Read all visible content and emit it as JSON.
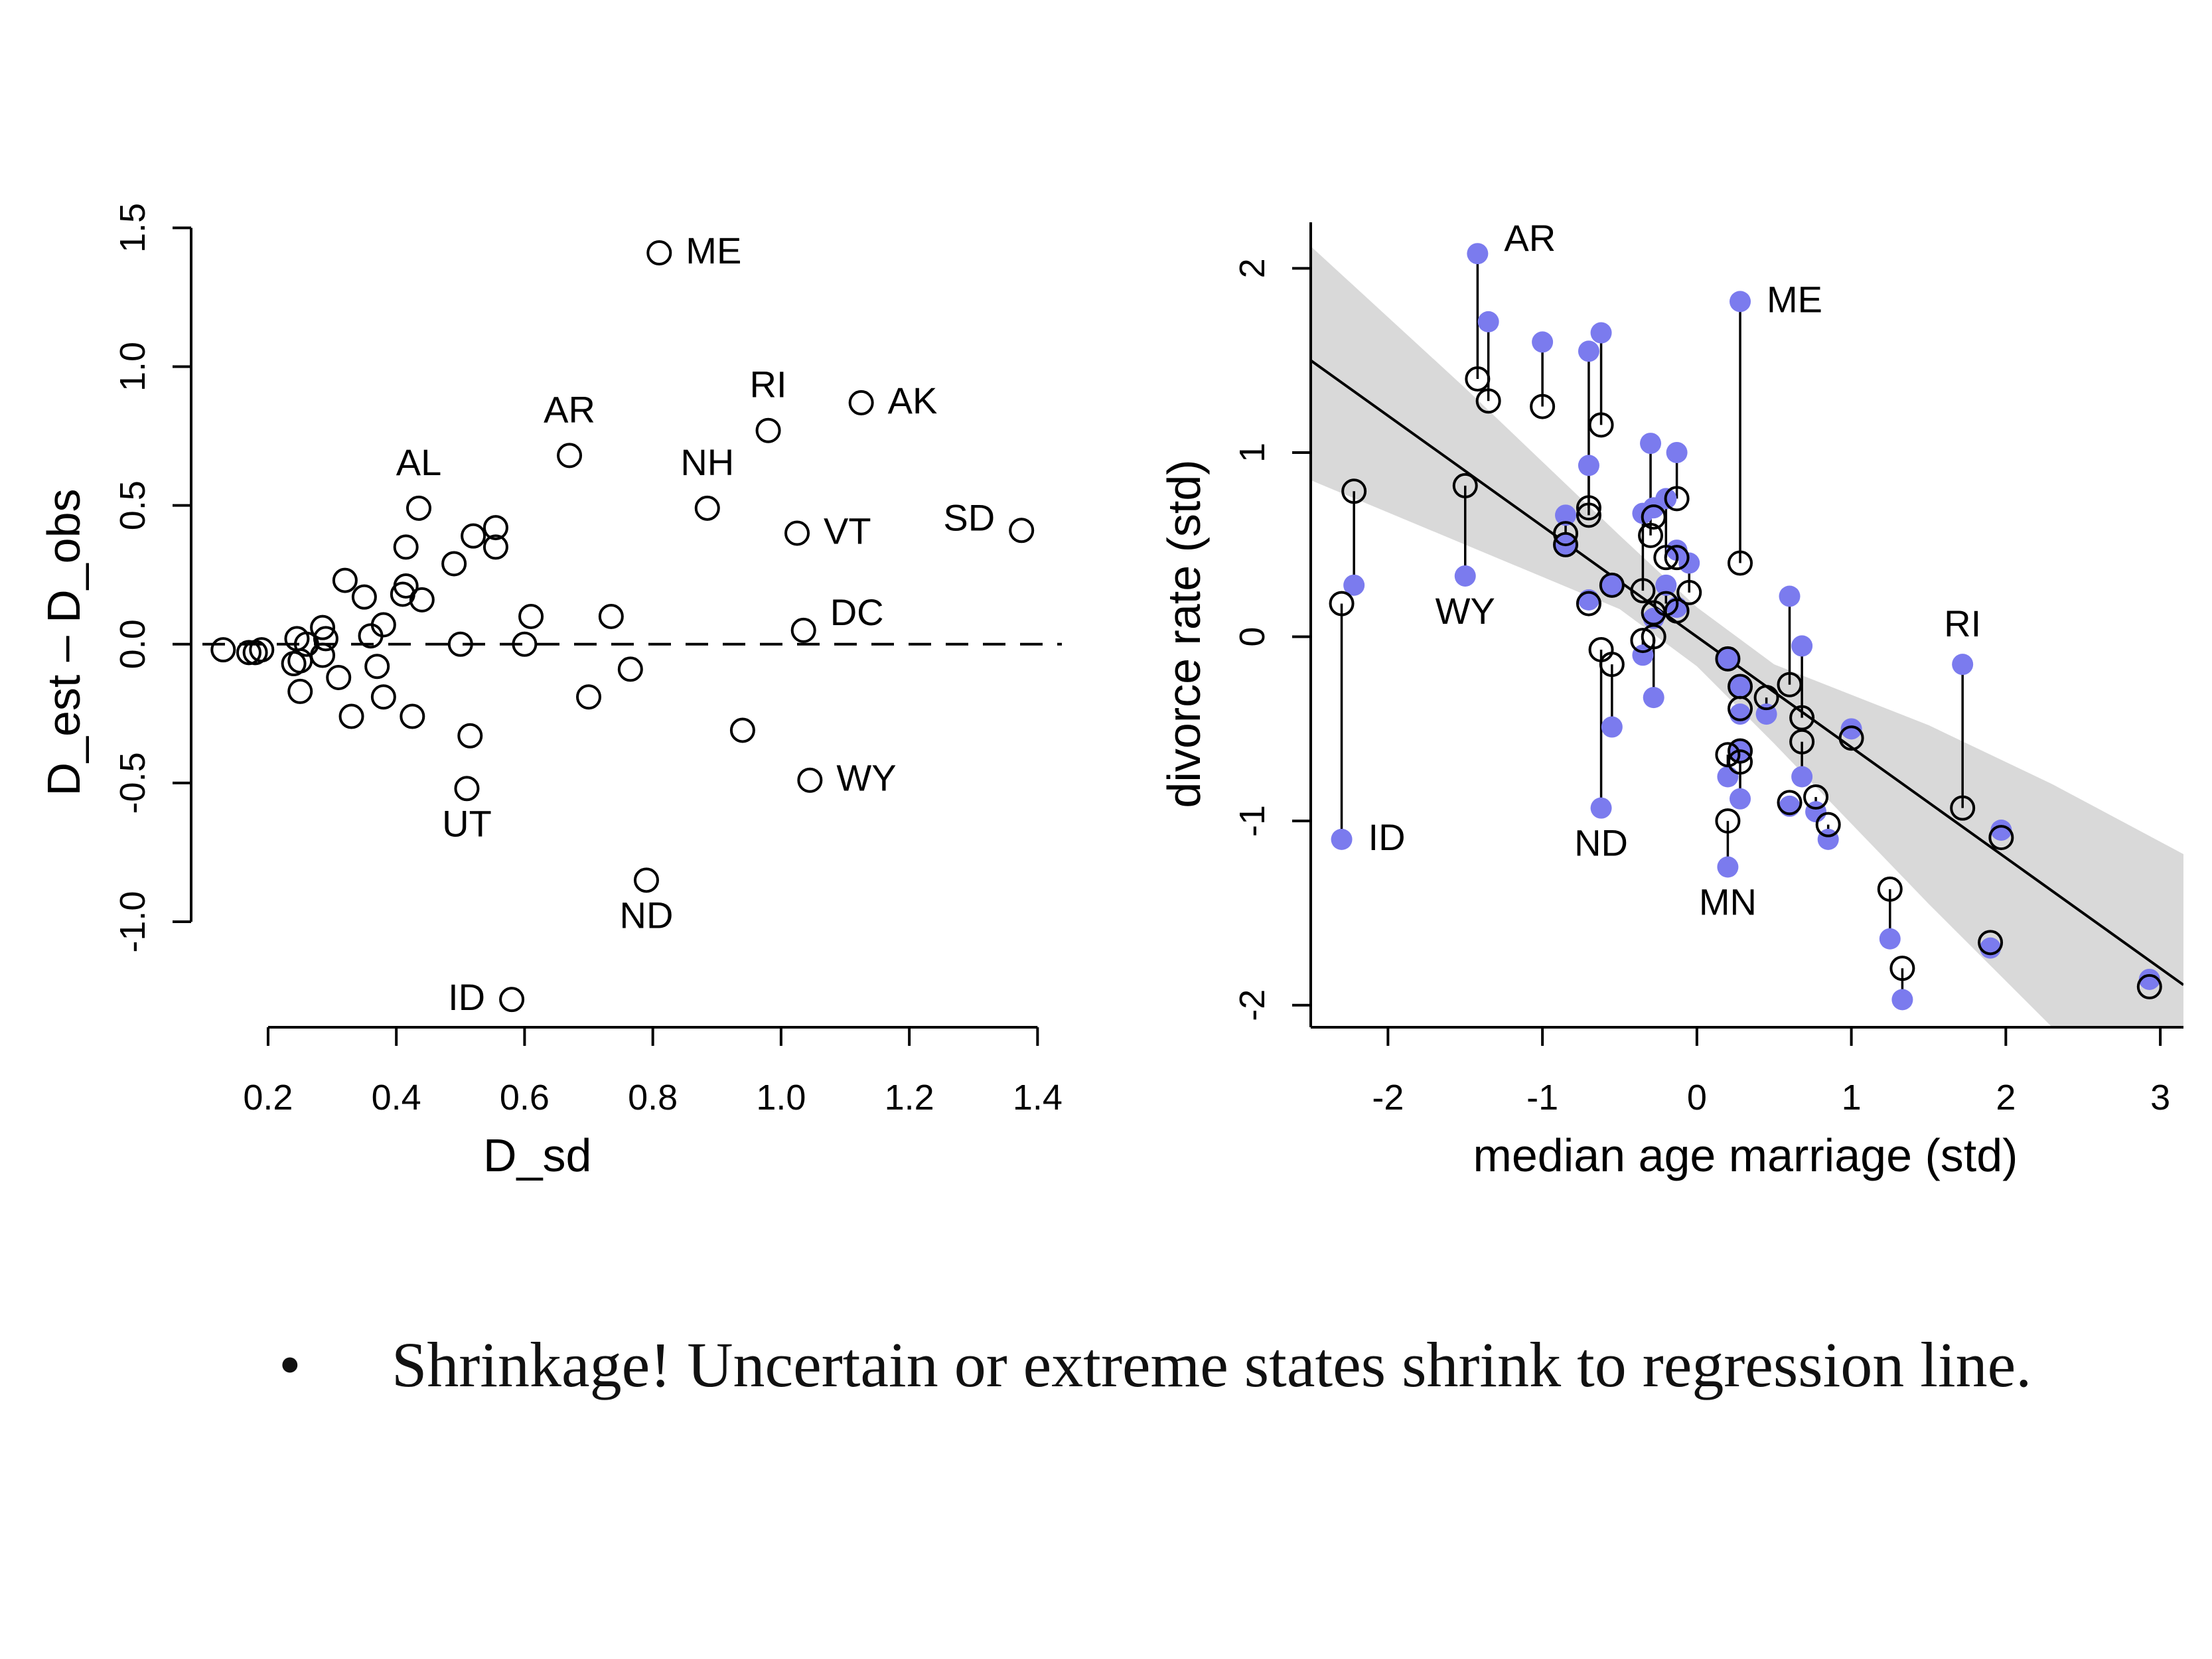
{
  "colors": {
    "axis": "#000000",
    "ink": "#000000",
    "shrunk_point": "#7b7bee",
    "ci_band": "#d9d9d9",
    "background": "#ffffff"
  },
  "chart_data": [
    {
      "type": "scatter",
      "title": "",
      "xlabel": "D_sd",
      "ylabel": "D_est – D_obs",
      "xlim": [
        0.08,
        1.44
      ],
      "ylim": [
        -1.38,
        1.52
      ],
      "xticks": [
        0.2,
        0.4,
        0.6,
        0.8,
        1.0,
        1.2,
        1.4
      ],
      "xtick_labels": [
        "0.2",
        "0.4",
        "0.6",
        "0.8",
        "1.0",
        "1.2",
        "1.4"
      ],
      "yticks": [
        -1.0,
        -0.5,
        0.0,
        0.5,
        1.0,
        1.5
      ],
      "ytick_labels": [
        "-1.0",
        "-0.5",
        "0.0",
        "0.5",
        "1.0",
        "1.5"
      ],
      "reference_line": {
        "y": 0,
        "style": "dashed"
      },
      "grid": false,
      "points": [
        {
          "x": 0.13,
          "y": -0.02,
          "label": ""
        },
        {
          "x": 0.17,
          "y": -0.03,
          "label": ""
        },
        {
          "x": 0.18,
          "y": -0.03,
          "label": ""
        },
        {
          "x": 0.19,
          "y": -0.02,
          "label": ""
        },
        {
          "x": 0.24,
          "y": -0.07,
          "label": ""
        },
        {
          "x": 0.25,
          "y": -0.06,
          "label": ""
        },
        {
          "x": 0.245,
          "y": 0.02,
          "label": ""
        },
        {
          "x": 0.26,
          "y": 0.0,
          "label": ""
        },
        {
          "x": 0.25,
          "y": -0.17,
          "label": ""
        },
        {
          "x": 0.285,
          "y": 0.06,
          "label": ""
        },
        {
          "x": 0.29,
          "y": 0.02,
          "label": ""
        },
        {
          "x": 0.285,
          "y": -0.04,
          "label": ""
        },
        {
          "x": 0.31,
          "y": -0.12,
          "label": ""
        },
        {
          "x": 0.32,
          "y": 0.23,
          "label": ""
        },
        {
          "x": 0.33,
          "y": -0.26,
          "label": ""
        },
        {
          "x": 0.35,
          "y": 0.17,
          "label": ""
        },
        {
          "x": 0.36,
          "y": 0.03,
          "label": ""
        },
        {
          "x": 0.37,
          "y": -0.08,
          "label": ""
        },
        {
          "x": 0.38,
          "y": 0.07,
          "label": ""
        },
        {
          "x": 0.38,
          "y": -0.19,
          "label": ""
        },
        {
          "x": 0.41,
          "y": 0.18,
          "label": ""
        },
        {
          "x": 0.415,
          "y": 0.21,
          "label": ""
        },
        {
          "x": 0.415,
          "y": 0.35,
          "label": ""
        },
        {
          "x": 0.425,
          "y": -0.26,
          "label": ""
        },
        {
          "x": 0.435,
          "y": 0.49,
          "label": "AL"
        },
        {
          "x": 0.44,
          "y": 0.16,
          "label": ""
        },
        {
          "x": 0.49,
          "y": 0.29,
          "label": ""
        },
        {
          "x": 0.5,
          "y": 0.0,
          "label": ""
        },
        {
          "x": 0.51,
          "y": -0.52,
          "label": "UT"
        },
        {
          "x": 0.515,
          "y": -0.33,
          "label": ""
        },
        {
          "x": 0.52,
          "y": 0.39,
          "label": ""
        },
        {
          "x": 0.555,
          "y": 0.42,
          "label": ""
        },
        {
          "x": 0.555,
          "y": 0.35,
          "label": ""
        },
        {
          "x": 0.58,
          "y": -1.28,
          "label": "ID"
        },
        {
          "x": 0.6,
          "y": 0.0,
          "label": ""
        },
        {
          "x": 0.61,
          "y": 0.1,
          "label": ""
        },
        {
          "x": 0.67,
          "y": 0.68,
          "label": "AR"
        },
        {
          "x": 0.7,
          "y": -0.19,
          "label": ""
        },
        {
          "x": 0.735,
          "y": 0.1,
          "label": ""
        },
        {
          "x": 0.765,
          "y": -0.09,
          "label": ""
        },
        {
          "x": 0.79,
          "y": -0.85,
          "label": "ND"
        },
        {
          "x": 0.81,
          "y": 1.41,
          "label": "ME"
        },
        {
          "x": 0.885,
          "y": 0.49,
          "label": "NH"
        },
        {
          "x": 0.94,
          "y": -0.31,
          "label": ""
        },
        {
          "x": 0.98,
          "y": 0.77,
          "label": "RI"
        },
        {
          "x": 1.025,
          "y": 0.4,
          "label": "VT"
        },
        {
          "x": 1.035,
          "y": 0.05,
          "label": "DC"
        },
        {
          "x": 1.045,
          "y": -0.49,
          "label": "WY"
        },
        {
          "x": 1.125,
          "y": 0.87,
          "label": "AK"
        },
        {
          "x": 1.375,
          "y": 0.41,
          "label": "SD"
        }
      ]
    },
    {
      "type": "scatter",
      "title": "",
      "xlabel": "median age marriage (std)",
      "ylabel": "divorce rate (std)",
      "xlim": [
        -2.5,
        3.15
      ],
      "ylim": [
        -2.12,
        2.25
      ],
      "xticks": [
        -2,
        -1,
        0,
        1,
        2,
        3
      ],
      "xtick_labels": [
        "-2",
        "-1",
        "0",
        "1",
        "2",
        "3"
      ],
      "yticks": [
        -2,
        -1,
        0,
        1,
        2
      ],
      "ytick_labels": [
        "-2",
        "-1",
        "0",
        "1",
        "2"
      ],
      "grid": false,
      "regression": {
        "intercept": 0.0,
        "slope": -0.6
      },
      "band": [
        {
          "x": -2.5,
          "lo": 0.85,
          "hi": 2.12
        },
        {
          "x": -1.5,
          "lo": 0.5,
          "hi": 1.35
        },
        {
          "x": -0.5,
          "lo": 0.15,
          "hi": 0.55
        },
        {
          "x": 0.0,
          "lo": -0.16,
          "hi": 0.16
        },
        {
          "x": 0.5,
          "lo": -0.58,
          "hi": -0.15
        },
        {
          "x": 1.5,
          "lo": -1.45,
          "hi": -0.48
        },
        {
          "x": 2.3,
          "lo": -2.12,
          "hi": -0.8
        },
        {
          "x": 3.15,
          "lo": -3.05,
          "hi": -1.18
        }
      ],
      "series": [
        {
          "name": "",
          "role": "observed",
          "marker": "filled"
        },
        {
          "name": "",
          "role": "estimated",
          "marker": "open"
        }
      ],
      "states": [
        {
          "x": -2.3,
          "obs": -1.1,
          "est": 0.18,
          "label": "ID"
        },
        {
          "x": -2.22,
          "obs": 0.28,
          "est": 0.79,
          "label": ""
        },
        {
          "x": -1.42,
          "obs": 2.08,
          "est": 1.4,
          "label": "AR"
        },
        {
          "x": -1.35,
          "obs": 1.71,
          "est": 1.28,
          "label": ""
        },
        {
          "x": -1.5,
          "obs": 0.33,
          "est": 0.82,
          "label": "WY"
        },
        {
          "x": -1.0,
          "obs": 1.6,
          "est": 1.25,
          "label": ""
        },
        {
          "x": -0.85,
          "obs": 0.66,
          "est": 0.56,
          "label": ""
        },
        {
          "x": -0.85,
          "obs": 0.5,
          "est": 0.5,
          "label": ""
        },
        {
          "x": -0.7,
          "obs": 1.55,
          "est": 0.7,
          "label": ""
        },
        {
          "x": -0.7,
          "obs": 0.93,
          "est": 0.66,
          "label": ""
        },
        {
          "x": -0.7,
          "obs": 0.2,
          "est": 0.18,
          "label": ""
        },
        {
          "x": -0.62,
          "obs": 1.65,
          "est": 1.15,
          "label": ""
        },
        {
          "x": -0.62,
          "obs": -0.93,
          "est": -0.07,
          "label": "ND"
        },
        {
          "x": -0.55,
          "obs": -0.49,
          "est": -0.15,
          "label": ""
        },
        {
          "x": -0.55,
          "obs": 0.28,
          "est": 0.28,
          "label": ""
        },
        {
          "x": -0.35,
          "obs": 0.67,
          "est": 0.25,
          "label": ""
        },
        {
          "x": -0.35,
          "obs": -0.1,
          "est": -0.02,
          "label": ""
        },
        {
          "x": -0.3,
          "obs": 1.05,
          "est": 0.55,
          "label": ""
        },
        {
          "x": -0.28,
          "obs": 0.7,
          "est": 0.65,
          "label": ""
        },
        {
          "x": -0.28,
          "obs": -0.33,
          "est": 0.0,
          "label": ""
        },
        {
          "x": -0.28,
          "obs": 0.1,
          "est": 0.13,
          "label": ""
        },
        {
          "x": -0.2,
          "obs": 0.75,
          "est": 0.43,
          "label": ""
        },
        {
          "x": -0.2,
          "obs": 0.28,
          "est": 0.18,
          "label": ""
        },
        {
          "x": -0.13,
          "obs": 1.0,
          "est": 0.75,
          "label": ""
        },
        {
          "x": -0.13,
          "obs": 0.47,
          "est": 0.43,
          "label": ""
        },
        {
          "x": -0.13,
          "obs": 0.16,
          "est": 0.14,
          "label": ""
        },
        {
          "x": -0.05,
          "obs": 0.4,
          "est": 0.24,
          "label": ""
        },
        {
          "x": 0.2,
          "obs": -1.25,
          "est": -1.0,
          "label": "MN"
        },
        {
          "x": 0.2,
          "obs": -0.76,
          "est": -0.64,
          "label": ""
        },
        {
          "x": 0.2,
          "obs": -0.12,
          "est": -0.12,
          "label": ""
        },
        {
          "x": 0.28,
          "obs": 1.82,
          "est": 0.4,
          "label": "ME"
        },
        {
          "x": 0.28,
          "obs": -0.88,
          "est": -0.68,
          "label": ""
        },
        {
          "x": 0.28,
          "obs": -0.62,
          "est": -0.62,
          "label": ""
        },
        {
          "x": 0.28,
          "obs": -0.42,
          "est": -0.39,
          "label": ""
        },
        {
          "x": 0.28,
          "obs": -0.27,
          "est": -0.27,
          "label": ""
        },
        {
          "x": 0.45,
          "obs": -0.42,
          "est": -0.33,
          "label": ""
        },
        {
          "x": 0.6,
          "obs": 0.22,
          "est": -0.26,
          "label": ""
        },
        {
          "x": 0.6,
          "obs": -0.92,
          "est": -0.9,
          "label": ""
        },
        {
          "x": 0.68,
          "obs": -0.05,
          "est": -0.44,
          "label": ""
        },
        {
          "x": 0.68,
          "obs": -0.76,
          "est": -0.57,
          "label": ""
        },
        {
          "x": 0.77,
          "obs": -0.95,
          "est": -0.87,
          "label": ""
        },
        {
          "x": 0.85,
          "obs": -1.1,
          "est": -1.02,
          "label": ""
        },
        {
          "x": 1.0,
          "obs": -0.5,
          "est": -0.55,
          "label": ""
        },
        {
          "x": 1.25,
          "obs": -1.64,
          "est": -1.37,
          "label": ""
        },
        {
          "x": 1.33,
          "obs": -1.97,
          "est": -1.8,
          "label": ""
        },
        {
          "x": 1.72,
          "obs": -0.15,
          "est": -0.93,
          "label": "RI"
        },
        {
          "x": 1.9,
          "obs": -1.69,
          "est": -1.66,
          "label": ""
        },
        {
          "x": 1.97,
          "obs": -1.05,
          "est": -1.09,
          "label": ""
        },
        {
          "x": 2.93,
          "obs": -1.86,
          "est": -1.9,
          "label": ""
        }
      ]
    }
  ],
  "bullet": {
    "marker": "•",
    "text": "Shrinkage! Uncertain or extreme states shrink to regression line."
  }
}
